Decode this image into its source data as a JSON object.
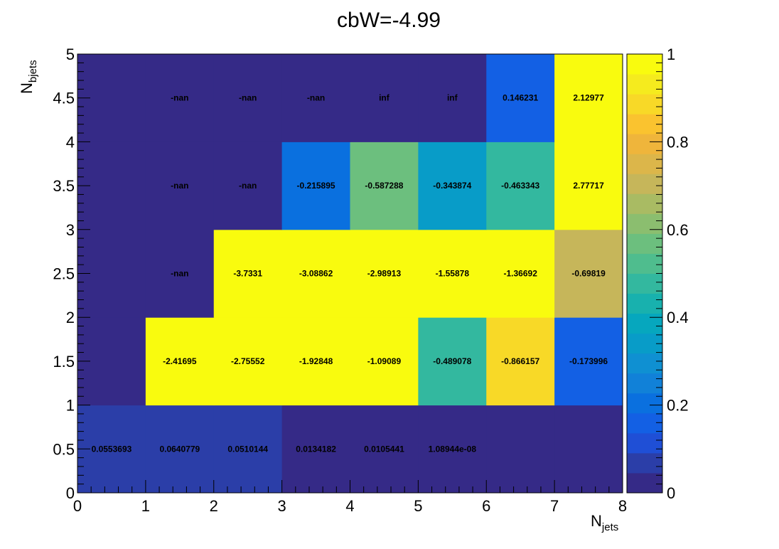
{
  "chart_data": {
    "type": "heatmap",
    "title": "cbW=-4.99",
    "xlabel_main": "N",
    "xlabel_sub": "jets",
    "ylabel_main": "N",
    "ylabel_sub": "bjets",
    "x_edges": [
      0,
      1,
      2,
      3,
      4,
      5,
      6,
      7,
      8
    ],
    "y_edges": [
      0,
      1,
      2,
      3,
      4,
      5
    ],
    "xlim": [
      0,
      8
    ],
    "ylim": [
      0,
      5
    ],
    "x_ticks": [
      "0",
      "1",
      "2",
      "3",
      "4",
      "5",
      "6",
      "7",
      "8"
    ],
    "y_ticks": [
      "0",
      "0.5",
      "1",
      "1.5",
      "2",
      "2.5",
      "3",
      "3.5",
      "4",
      "4.5",
      "5"
    ],
    "colorbar_ticks": [
      "0",
      "0.2",
      "0.4",
      "0.6",
      "0.8",
      "1"
    ],
    "zlim": [
      0,
      1
    ],
    "palette": [
      "#352a87",
      "#2b3ea8",
      "#1f4fd6",
      "#1360e4",
      "#0a70df",
      "#1181d8",
      "#0f90d2",
      "#089cc8",
      "#06a7be",
      "#18b1ae",
      "#33b89f",
      "#4fbd8e",
      "#6cbf7e",
      "#8bbe6f",
      "#a9bb63",
      "#c6b65a",
      "#dcb64a",
      "#efb53b",
      "#fac32f",
      "#f8d927",
      "#f5eb1e",
      "#f9fb0e"
    ],
    "cells": [
      {
        "x": 0.5,
        "y": 0.5,
        "label": "0.0553693",
        "z": 0.06
      },
      {
        "x": 1.5,
        "y": 0.5,
        "label": "0.0640779",
        "z": 0.06
      },
      {
        "x": 2.5,
        "y": 0.5,
        "label": "0.0510144",
        "z": 0.05
      },
      {
        "x": 3.5,
        "y": 0.5,
        "label": "0.0134182",
        "z": 0.01
      },
      {
        "x": 4.5,
        "y": 0.5,
        "label": "0.0105441",
        "z": 0.01
      },
      {
        "x": 5.5,
        "y": 0.5,
        "label": "1.08944e-08",
        "z": 0.0
      },
      {
        "x": 6.5,
        "y": 0.5,
        "label": "",
        "z": 0.0
      },
      {
        "x": 7.5,
        "y": 0.5,
        "label": "",
        "z": 0.0
      },
      {
        "x": 0.5,
        "y": 1.5,
        "label": "",
        "z": 0.0
      },
      {
        "x": 1.5,
        "y": 1.5,
        "label": "-2.41695",
        "z": 1.0
      },
      {
        "x": 2.5,
        "y": 1.5,
        "label": "-2.75552",
        "z": 1.0
      },
      {
        "x": 3.5,
        "y": 1.5,
        "label": "-1.92848",
        "z": 1.0
      },
      {
        "x": 4.5,
        "y": 1.5,
        "label": "-1.09089",
        "z": 1.0
      },
      {
        "x": 5.5,
        "y": 1.5,
        "label": "-0.489078",
        "z": 0.49
      },
      {
        "x": 6.5,
        "y": 1.5,
        "label": "-0.866157",
        "z": 0.87
      },
      {
        "x": 7.5,
        "y": 1.5,
        "label": "-0.173996",
        "z": 0.17
      },
      {
        "x": 0.5,
        "y": 2.5,
        "label": "",
        "z": 0.0
      },
      {
        "x": 1.5,
        "y": 2.5,
        "label": "-nan",
        "z": null
      },
      {
        "x": 2.5,
        "y": 2.5,
        "label": "-3.7331",
        "z": 1.0
      },
      {
        "x": 3.5,
        "y": 2.5,
        "label": "-3.08862",
        "z": 1.0
      },
      {
        "x": 4.5,
        "y": 2.5,
        "label": "-2.98913",
        "z": 1.0
      },
      {
        "x": 5.5,
        "y": 2.5,
        "label": "-1.55878",
        "z": 1.0
      },
      {
        "x": 6.5,
        "y": 2.5,
        "label": "-1.36692",
        "z": 1.0
      },
      {
        "x": 7.5,
        "y": 2.5,
        "label": "-0.69819",
        "z": 0.7
      },
      {
        "x": 0.5,
        "y": 3.5,
        "label": "",
        "z": 0.0
      },
      {
        "x": 1.5,
        "y": 3.5,
        "label": "-nan",
        "z": null
      },
      {
        "x": 2.5,
        "y": 3.5,
        "label": "-nan",
        "z": null
      },
      {
        "x": 3.5,
        "y": 3.5,
        "label": "-0.215895",
        "z": 0.22
      },
      {
        "x": 4.5,
        "y": 3.5,
        "label": "-0.587288",
        "z": 0.59
      },
      {
        "x": 5.5,
        "y": 3.5,
        "label": "-0.343874",
        "z": 0.34
      },
      {
        "x": 6.5,
        "y": 3.5,
        "label": "-0.463343",
        "z": 0.46
      },
      {
        "x": 7.5,
        "y": 3.5,
        "label": "2.77717",
        "z": 1.0
      },
      {
        "x": 0.5,
        "y": 4.5,
        "label": "",
        "z": 0.0
      },
      {
        "x": 1.5,
        "y": 4.5,
        "label": "-nan",
        "z": null
      },
      {
        "x": 2.5,
        "y": 4.5,
        "label": "-nan",
        "z": null
      },
      {
        "x": 3.5,
        "y": 4.5,
        "label": "-nan",
        "z": null
      },
      {
        "x": 4.5,
        "y": 4.5,
        "label": "inf",
        "z": null
      },
      {
        "x": 5.5,
        "y": 4.5,
        "label": "inf",
        "z": null
      },
      {
        "x": 6.5,
        "y": 4.5,
        "label": "0.146231",
        "z": 0.15
      },
      {
        "x": 7.5,
        "y": 4.5,
        "label": "2.12977",
        "z": 1.0
      }
    ]
  }
}
